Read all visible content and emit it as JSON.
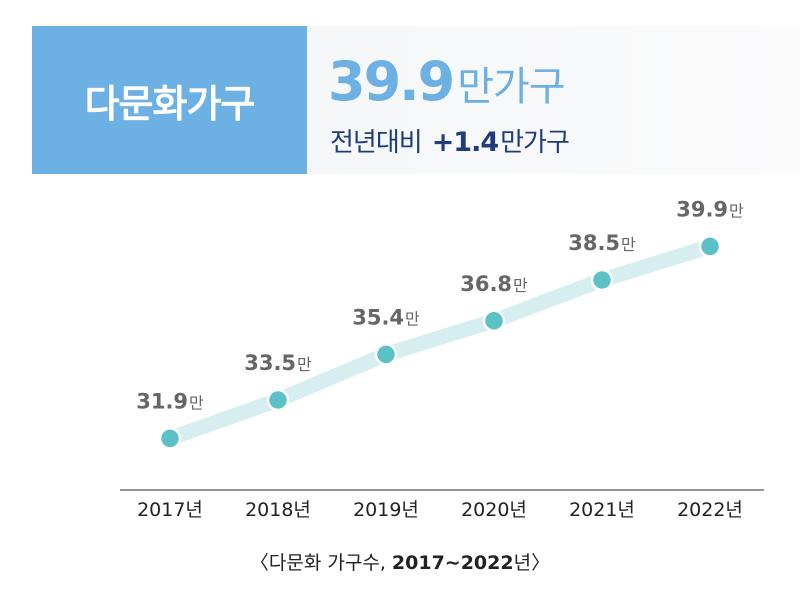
{
  "banner": {
    "label": "다문화가구",
    "value": "39.9",
    "value_unit": "만가구",
    "change_label": "전년대비",
    "change_value": "+1.4",
    "change_unit": "만가구"
  },
  "caption": {
    "open": "〈",
    "text": "다문화 가구수, ",
    "range": "2017∼2022",
    "range_suffix": "년",
    "close": "〉"
  },
  "colors": {
    "accent_blue": "#6cb0e4",
    "navy": "#1f3d7a",
    "line": "#d6eef0",
    "marker": "#5cc0c7",
    "label_gray": "#666666"
  },
  "chart_data": {
    "type": "line",
    "categories": [
      "2017년",
      "2018년",
      "2019년",
      "2020년",
      "2021년",
      "2022년"
    ],
    "values": [
      31.9,
      33.5,
      35.4,
      36.8,
      38.5,
      39.9
    ],
    "data_labels": [
      "31.9",
      "33.5",
      "35.4",
      "36.8",
      "38.5",
      "39.9"
    ],
    "data_label_unit": "만",
    "title": "",
    "xlabel": "",
    "ylabel": "",
    "ylim": [
      28,
      42
    ],
    "grid": false,
    "legend": "none"
  }
}
